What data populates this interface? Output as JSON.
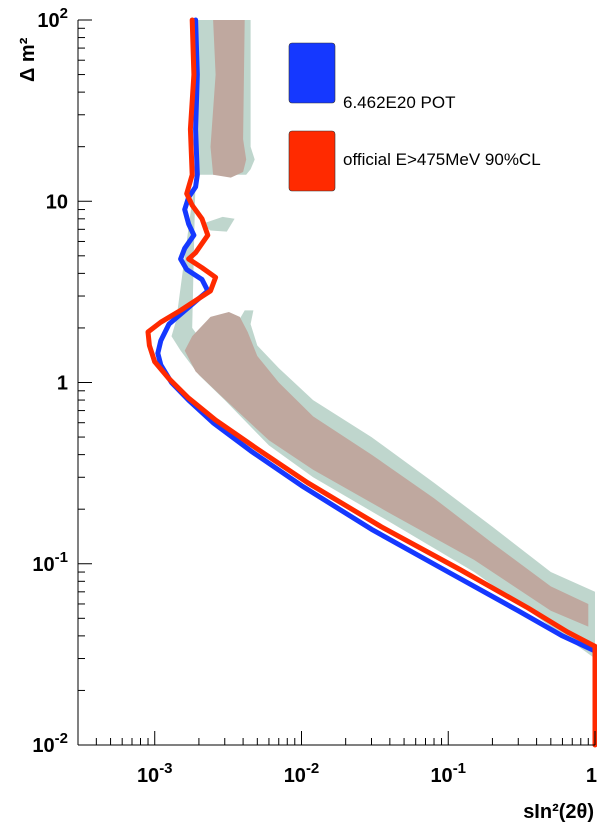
{
  "chart_data": {
    "type": "line",
    "xlabel": "sIn²(2θ)",
    "ylabel": "Δ m²",
    "xscale": "log",
    "yscale": "log",
    "xlim": [
      0.0003,
      1
    ],
    "ylim": [
      0.01,
      100
    ],
    "x_ticks": [
      {
        "value": 0.001,
        "base": "10",
        "exp": "-3"
      },
      {
        "value": 0.01,
        "base": "10",
        "exp": "-2"
      },
      {
        "value": 0.1,
        "base": "10",
        "exp": "-1"
      },
      {
        "value": 1,
        "base": "1",
        "exp": ""
      }
    ],
    "y_ticks": [
      {
        "value": 0.01,
        "base": "10",
        "exp": "-2"
      },
      {
        "value": 0.1,
        "base": "10",
        "exp": "-1"
      },
      {
        "value": 1,
        "base": "1",
        "exp": ""
      },
      {
        "value": 10,
        "base": "10",
        "exp": ""
      },
      {
        "value": 100,
        "base": "10",
        "exp": "2"
      }
    ],
    "grid": false,
    "legend_position": "top-right",
    "series": [
      {
        "name": "6.462E20 POT",
        "color": "#1538ff",
        "points": [
          [
            0.0019,
            100
          ],
          [
            0.00195,
            50
          ],
          [
            0.0019,
            25
          ],
          [
            0.00195,
            14
          ],
          [
            0.0019,
            12
          ],
          [
            0.0017,
            10.5
          ],
          [
            0.0016,
            9
          ],
          [
            0.0017,
            7.5
          ],
          [
            0.00185,
            6.5
          ],
          [
            0.0016,
            5.5
          ],
          [
            0.0015,
            4.8
          ],
          [
            0.00165,
            4.2
          ],
          [
            0.0021,
            3.7
          ],
          [
            0.0023,
            3.2
          ],
          [
            0.0017,
            2.6
          ],
          [
            0.00125,
            2.1
          ],
          [
            0.0011,
            1.7
          ],
          [
            0.00105,
            1.45
          ],
          [
            0.0011,
            1.25
          ],
          [
            0.0013,
            1.0
          ],
          [
            0.0017,
            0.8
          ],
          [
            0.0025,
            0.6
          ],
          [
            0.0045,
            0.42
          ],
          [
            0.01,
            0.27
          ],
          [
            0.03,
            0.155
          ],
          [
            0.1,
            0.09
          ],
          [
            0.3,
            0.055
          ],
          [
            0.6,
            0.04
          ],
          [
            1,
            0.033
          ]
        ]
      },
      {
        "name": "official E>475MeV 90%CL",
        "color": "#ff2a00",
        "points": [
          [
            0.0018,
            100
          ],
          [
            0.00185,
            50
          ],
          [
            0.00175,
            25
          ],
          [
            0.0018,
            14
          ],
          [
            0.00165,
            11
          ],
          [
            0.0018,
            9.5
          ],
          [
            0.0021,
            8
          ],
          [
            0.0023,
            6.5
          ],
          [
            0.0019,
            5.2
          ],
          [
            0.0017,
            4.8
          ],
          [
            0.0021,
            4.3
          ],
          [
            0.0026,
            3.8
          ],
          [
            0.0024,
            3.2
          ],
          [
            0.0015,
            2.5
          ],
          [
            0.0011,
            2.15
          ],
          [
            0.0009,
            1.9
          ],
          [
            0.00092,
            1.6
          ],
          [
            0.001,
            1.3
          ],
          [
            0.00125,
            1.05
          ],
          [
            0.0017,
            0.82
          ],
          [
            0.0026,
            0.62
          ],
          [
            0.005,
            0.43
          ],
          [
            0.011,
            0.28
          ],
          [
            0.035,
            0.16
          ],
          [
            0.12,
            0.093
          ],
          [
            0.35,
            0.057
          ],
          [
            0.65,
            0.042
          ],
          [
            1,
            0.035
          ],
          [
            1,
            0.01
          ]
        ]
      }
    ],
    "bands": [
      {
        "name": "outer band",
        "color": "#bfd6cd",
        "polygon": [
          [
            0.0019,
            100
          ],
          [
            0.0045,
            100
          ],
          [
            0.0045,
            20
          ],
          [
            0.0048,
            17
          ],
          [
            0.0045,
            15
          ],
          [
            0.0042,
            14
          ],
          [
            0.0019,
            14
          ],
          [
            0.0014,
            2.2
          ],
          [
            0.0013,
            1.8
          ],
          [
            0.0015,
            1.5
          ],
          [
            0.002,
            1.1
          ],
          [
            0.003,
            0.8
          ],
          [
            0.006,
            0.45
          ],
          [
            0.012,
            0.3
          ],
          [
            0.04,
            0.17
          ],
          [
            0.15,
            0.09
          ],
          [
            0.5,
            0.045
          ],
          [
            1,
            0.03
          ],
          [
            1,
            0.07
          ],
          [
            0.5,
            0.09
          ],
          [
            0.2,
            0.16
          ],
          [
            0.08,
            0.28
          ],
          [
            0.03,
            0.5
          ],
          [
            0.012,
            0.8
          ],
          [
            0.007,
            1.2
          ],
          [
            0.005,
            1.6
          ],
          [
            0.0045,
            2.1
          ],
          [
            0.0047,
            2.5
          ],
          [
            0.0041,
            2.5
          ],
          [
            0.0035,
            2.0
          ],
          [
            0.0031,
            1.6
          ],
          [
            0.0028,
            1.3
          ],
          [
            0.0022,
            1.6
          ],
          [
            0.0018,
            2.0
          ],
          [
            0.0019,
            14
          ],
          [
            0.0019,
            100
          ]
        ]
      },
      {
        "name": "inner band",
        "color": "#bfa89f",
        "polygon": [
          [
            0.0025,
            100
          ],
          [
            0.0041,
            100
          ],
          [
            0.004,
            22
          ],
          [
            0.0042,
            17
          ],
          [
            0.004,
            14.5
          ],
          [
            0.0033,
            13.5
          ],
          [
            0.0025,
            14
          ],
          [
            0.0024,
            20
          ],
          [
            0.0026,
            50
          ],
          [
            0.0025,
            100
          ]
        ]
      },
      {
        "name": "inner band lower",
        "color": "#bfa89f",
        "polygon": [
          [
            0.0018,
            1.8
          ],
          [
            0.0016,
            1.5
          ],
          [
            0.0019,
            1.15
          ],
          [
            0.0028,
            0.85
          ],
          [
            0.006,
            0.48
          ],
          [
            0.012,
            0.33
          ],
          [
            0.04,
            0.19
          ],
          [
            0.15,
            0.105
          ],
          [
            0.5,
            0.055
          ],
          [
            0.9,
            0.045
          ],
          [
            0.9,
            0.06
          ],
          [
            0.5,
            0.075
          ],
          [
            0.2,
            0.13
          ],
          [
            0.08,
            0.23
          ],
          [
            0.03,
            0.4
          ],
          [
            0.012,
            0.65
          ],
          [
            0.007,
            1.0
          ],
          [
            0.005,
            1.4
          ],
          [
            0.0043,
            1.9
          ],
          [
            0.0038,
            2.3
          ],
          [
            0.0032,
            2.45
          ],
          [
            0.0024,
            2.3
          ],
          [
            0.0018,
            1.8
          ]
        ]
      },
      {
        "name": "outer band mid",
        "color": "#bfd6cd",
        "polygon": [
          [
            0.0021,
            7.5
          ],
          [
            0.0029,
            8.2
          ],
          [
            0.0035,
            8.0
          ],
          [
            0.0031,
            6.8
          ],
          [
            0.0024,
            6.9
          ],
          [
            0.0021,
            7.5
          ]
        ]
      }
    ]
  }
}
